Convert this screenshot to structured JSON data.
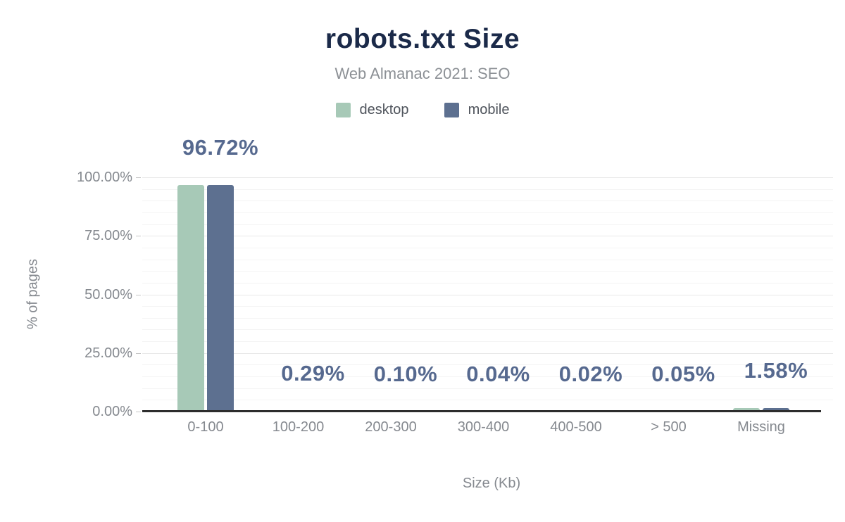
{
  "header": {
    "title": "robots.txt Size",
    "subtitle": "Web Almanac 2021: SEO"
  },
  "legend": {
    "items": [
      {
        "label": "desktop",
        "color": "#a7c9b7"
      },
      {
        "label": "mobile",
        "color": "#5d7090"
      }
    ]
  },
  "chart_data": {
    "type": "bar",
    "title": "robots.txt Size",
    "subtitle": "Web Almanac 2021: SEO",
    "categories": [
      "0-100",
      "100-200",
      "200-300",
      "300-400",
      "400-500",
      "> 500",
      "Missing"
    ],
    "series": [
      {
        "name": "desktop",
        "color": "#a7c9b7",
        "values": [
          96.72,
          0.29,
          0.1,
          0.04,
          0.02,
          0.05,
          1.58
        ]
      },
      {
        "name": "mobile",
        "color": "#5d7090",
        "values": [
          96.72,
          0.29,
          0.1,
          0.04,
          0.02,
          0.05,
          1.58
        ]
      }
    ],
    "annotations": [
      "96.72%",
      "0.29%",
      "0.10%",
      "0.04%",
      "0.02%",
      "0.05%",
      "1.58%"
    ],
    "annotation_color": "#56698f",
    "xlabel": "Size (Kb)",
    "ylabel": "% of pages",
    "ylim": [
      0,
      100
    ],
    "ytick_values": [
      0,
      25,
      50,
      75,
      100
    ],
    "ytick_labels": [
      "0.00%",
      "25.00%",
      "50.00%",
      "75.00%",
      "100.00%"
    ],
    "grid": "major every 25%, minor every 5%",
    "legend_position": "top center",
    "title_color": "#1b2a49",
    "subtitle_color": "#8d9196",
    "axis_text_color": "#85898f"
  }
}
